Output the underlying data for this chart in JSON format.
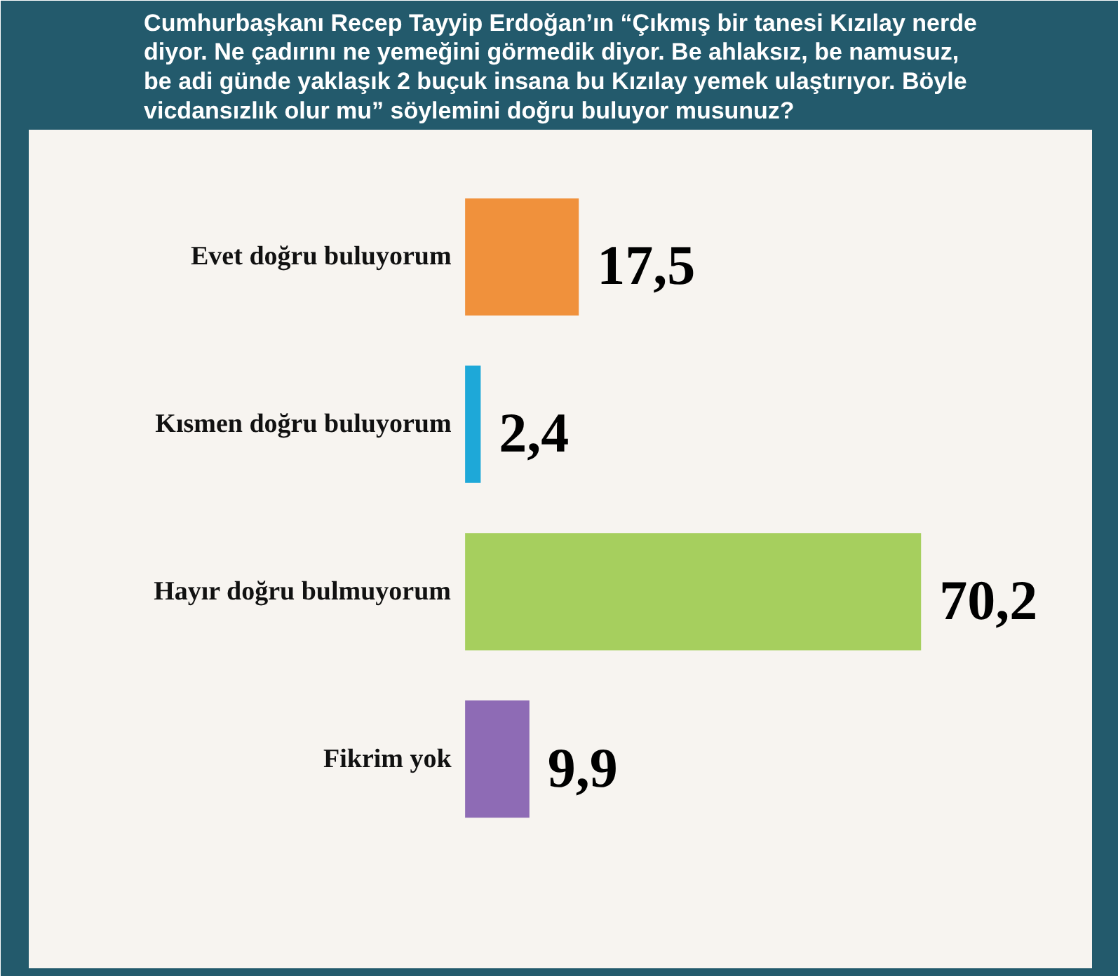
{
  "chart_data": {
    "type": "bar",
    "orientation": "horizontal",
    "title": "Cumhurbaşkanı Recep Tayyip Erdoğan’ın “Çıkmış bir tanesi Kızılay nerde diyor. Ne çadırını ne yemeğini görmedik diyor. Be ahlaksız, be namusuz, be adi günde yaklaşık 2 buçuk insana bu Kızılay yemek ulaştırıyor. Böyle vicdansızlık olur mu” söylemini doğru buluyor musunuz?",
    "categories": [
      "Evet doğru buluyorum",
      "Kısmen doğru buluyorum",
      "Hayır doğru bulmuyorum",
      "Fikrim yok"
    ],
    "values": [
      17.5,
      2.4,
      70.2,
      9.9
    ],
    "colors": [
      "#f0913c",
      "#1ea8d8",
      "#a6cf5e",
      "#8e6bb5"
    ],
    "value_labels": [
      "17,5",
      "2,4",
      "70,2",
      "9,9"
    ]
  }
}
